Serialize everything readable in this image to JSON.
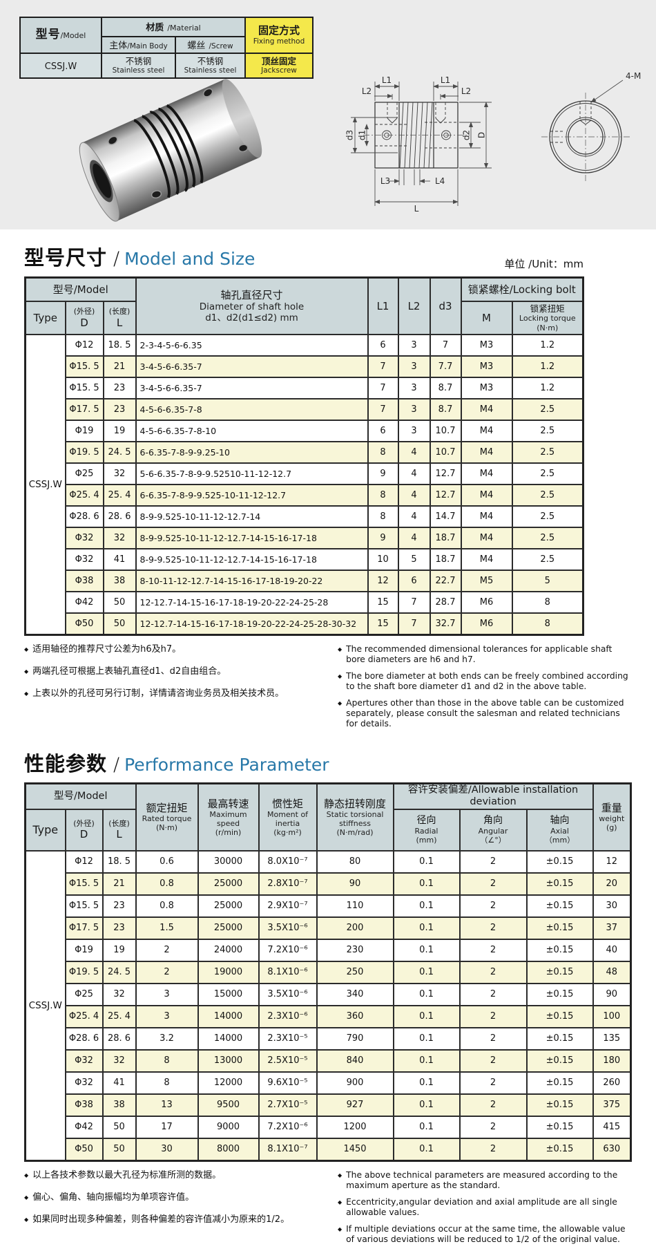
{
  "bullet": "◆",
  "spec_table": {
    "model_zh": "型号",
    "model_en": "/Model",
    "material_zh": "材质",
    "material_en": "/Material",
    "main_body_zh": "主体",
    "main_body_en": "/Main Body",
    "screw_zh": "螺丝",
    "screw_en": "/Screw",
    "fixing_zh": "固定方式",
    "fixing_en": "Fixing method",
    "model_value": "CSSJ.W",
    "main_body_value_zh": "不锈钢",
    "main_body_value_en": "Stainless steel",
    "screw_value_zh": "不锈钢",
    "screw_value_en": "Stainless steel",
    "fixing_value_zh": "顶丝固定",
    "fixing_value_en": "Jackscrew"
  },
  "drawing": {
    "l1": "L1",
    "l2": "L2",
    "l3": "L3",
    "l4": "L4",
    "l": "L",
    "d1": "d1",
    "d2": "d2",
    "d3": "d3",
    "d_outer": "D",
    "four_m": "4-M"
  },
  "size_section": {
    "title_zh": "型号尺寸",
    "title_sep": "/",
    "title_en": "Model and Size",
    "unit": "单位 /Unit：mm",
    "header": {
      "model_group": "型号/Model",
      "bore_zh": "轴孔直径尺寸",
      "bore_en": "Diameter of shaft hole",
      "bore_range": "d1、d2(d1≤d2) mm",
      "l1": "L1",
      "l2": "L2",
      "d3": "d3",
      "lock_group": "锁紧螺栓/Locking bolt",
      "type": "Type",
      "d_zh": "(外径)",
      "d": "D",
      "l_zh": "(长度)",
      "l": "L",
      "m": "M",
      "torque_zh": "锁紧扭矩",
      "torque_en": "Locking torque",
      "torque_unit": "(N·m)"
    },
    "type_value": "CSSJ.W",
    "rows": [
      {
        "d": "Φ12",
        "l": "18. 5",
        "bore": "2-3-4-5-6-6.35",
        "l1": "6",
        "l2": "3",
        "d3": "7",
        "m": "M3",
        "torque": "1.2"
      },
      {
        "d": "Φ15. 5",
        "l": "21",
        "bore": "3-4-5-6-6.35-7",
        "l1": "7",
        "l2": "3",
        "d3": "7.7",
        "m": "M3",
        "torque": "1.2"
      },
      {
        "d": "Φ15. 5",
        "l": "23",
        "bore": "3-4-5-6-6.35-7",
        "l1": "7",
        "l2": "3",
        "d3": "8.7",
        "m": "M3",
        "torque": "1.2"
      },
      {
        "d": "Φ17. 5",
        "l": "23",
        "bore": "4-5-6-6.35-7-8",
        "l1": "7",
        "l2": "3",
        "d3": "8.7",
        "m": "M4",
        "torque": "2.5"
      },
      {
        "d": "Φ19",
        "l": "19",
        "bore": "4-5-6-6.35-7-8-10",
        "l1": "6",
        "l2": "3",
        "d3": "10.7",
        "m": "M4",
        "torque": "2.5"
      },
      {
        "d": "Φ19. 5",
        "l": "24. 5",
        "bore": "6-6.35-7-8-9-9.25-10",
        "l1": "8",
        "l2": "4",
        "d3": "10.7",
        "m": "M4",
        "torque": "2.5"
      },
      {
        "d": "Φ25",
        "l": "32",
        "bore": "5-6-6.35-7-8-9-9.52510-11-12-12.7",
        "l1": "9",
        "l2": "4",
        "d3": "12.7",
        "m": "M4",
        "torque": "2.5"
      },
      {
        "d": "Φ25. 4",
        "l": "25. 4",
        "bore": "6-6.35-7-8-9-9.525-10-11-12-12.7",
        "l1": "8",
        "l2": "4",
        "d3": "12.7",
        "m": "M4",
        "torque": "2.5"
      },
      {
        "d": "Φ28. 6",
        "l": "28. 6",
        "bore": "8-9-9.525-10-11-12-12.7-14",
        "l1": "8",
        "l2": "4",
        "d3": "14.7",
        "m": "M4",
        "torque": "2.5"
      },
      {
        "d": "Φ32",
        "l": "32",
        "bore": "8-9-9.525-10-11-12-12.7-14-15-16-17-18",
        "l1": "9",
        "l2": "4",
        "d3": "18.7",
        "m": "M4",
        "torque": "2.5"
      },
      {
        "d": "Φ32",
        "l": "41",
        "bore": "8-9-9.525-10-11-12-12.7-14-15-16-17-18",
        "l1": "10",
        "l2": "5",
        "d3": "18.7",
        "m": "M4",
        "torque": "2.5"
      },
      {
        "d": "Φ38",
        "l": "38",
        "bore": "8-10-11-12-12.7-14-15-16-17-18-19-20-22",
        "l1": "12",
        "l2": "6",
        "d3": "22.7",
        "m": "M5",
        "torque": "5"
      },
      {
        "d": "Φ42",
        "l": "50",
        "bore": "12-12.7-14-15-16-17-18-19-20-22-24-25-28",
        "l1": "15",
        "l2": "7",
        "d3": "28.7",
        "m": "M6",
        "torque": "8"
      },
      {
        "d": "Φ50",
        "l": "50",
        "bore": "12-12.7-14-15-16-17-18-19-20-22-24-25-28-30-32",
        "l1": "15",
        "l2": "7",
        "d3": "32.7",
        "m": "M6",
        "torque": "8"
      }
    ],
    "notes_zh": [
      "适用轴径的推荐尺寸公差为h6及h7。",
      "两端孔径可根据上表轴孔直径d1、d2自由组合。",
      "上表以外的孔径可另行订制，详情请咨询业务员及相关技术员。"
    ],
    "notes_en": [
      "The recommended dimensional tolerances for applicable shaft bore diameters are h6 and h7.",
      "The bore diameter at both ends can be freely combined according to the shaft bore diameter d1 and d2 in the above table.",
      "Apertures other than those in the above table can be customized separately, please consult the salesman and related technicians for details."
    ]
  },
  "perf_section": {
    "title_zh": "性能参数",
    "title_sep": "/",
    "title_en": "Performance Parameter",
    "header": {
      "model_group": "型号/Model",
      "type": "Type",
      "d_zh": "(外径)",
      "d": "D",
      "l_zh": "(长度)",
      "l": "L",
      "torque_zh": "额定扭矩",
      "torque_en": "Rated torque",
      "torque_unit": "(N·m)",
      "speed_zh": "最高转速",
      "speed_en": "Maximum speed",
      "speed_unit": "(r/min)",
      "inertia_zh": "惯性矩",
      "inertia_en": "Moment of inertia",
      "inertia_unit": "(kg·m²)",
      "stiffness_zh": "静态扭转刚度",
      "stiffness_en": "Static torsional stiffness",
      "stiffness_unit": "(N·m/rad)",
      "deviation_group": "容许安装偏差/Allowable installation deviation",
      "radial_zh": "径向",
      "radial_en": "Radial",
      "radial_unit": "(mm)",
      "angular_zh": "角向",
      "angular_en": "Angular",
      "angular_unit": "（∠°）",
      "axial_zh": "轴向",
      "axial_en": "Axial",
      "axial_unit": "（mm）",
      "weight_zh": "重量",
      "weight_en": "weight",
      "weight_unit": "(g)"
    },
    "type_value": "CSSJ.W",
    "rows": [
      {
        "d": "Φ12",
        "l": "18. 5",
        "torque": "0.6",
        "speed": "30000",
        "inertia": "8.0X10⁻⁷",
        "stiffness": "80",
        "radial": "0.1",
        "angular": "2",
        "axial": "±0.15",
        "weight": "12"
      },
      {
        "d": "Φ15. 5",
        "l": "21",
        "torque": "0.8",
        "speed": "25000",
        "inertia": "2.8X10⁻⁷",
        "stiffness": "90",
        "radial": "0.1",
        "angular": "2",
        "axial": "±0.15",
        "weight": "20"
      },
      {
        "d": "Φ15. 5",
        "l": "23",
        "torque": "0.8",
        "speed": "25000",
        "inertia": "2.9X10⁻⁷",
        "stiffness": "110",
        "radial": "0.1",
        "angular": "2",
        "axial": "±0.15",
        "weight": "30"
      },
      {
        "d": "Φ17. 5",
        "l": "23",
        "torque": "1.5",
        "speed": "25000",
        "inertia": "3.5X10⁻⁶",
        "stiffness": "200",
        "radial": "0.1",
        "angular": "2",
        "axial": "±0.15",
        "weight": "37"
      },
      {
        "d": "Φ19",
        "l": "19",
        "torque": "2",
        "speed": "24000",
        "inertia": "7.2X10⁻⁶",
        "stiffness": "230",
        "radial": "0.1",
        "angular": "2",
        "axial": "±0.15",
        "weight": "40"
      },
      {
        "d": "Φ19. 5",
        "l": "24. 5",
        "torque": "2",
        "speed": "19000",
        "inertia": "8.1X10⁻⁶",
        "stiffness": "250",
        "radial": "0.1",
        "angular": "2",
        "axial": "±0.15",
        "weight": "48"
      },
      {
        "d": "Φ25",
        "l": "32",
        "torque": "3",
        "speed": "15000",
        "inertia": "3.5X10⁻⁶",
        "stiffness": "340",
        "radial": "0.1",
        "angular": "2",
        "axial": "±0.15",
        "weight": "90"
      },
      {
        "d": "Φ25. 4",
        "l": "25. 4",
        "torque": "3",
        "speed": "14000",
        "inertia": "2.3X10⁻⁶",
        "stiffness": "360",
        "radial": "0.1",
        "angular": "2",
        "axial": "±0.15",
        "weight": "100"
      },
      {
        "d": "Φ28. 6",
        "l": "28. 6",
        "torque": "3.2",
        "speed": "14000",
        "inertia": "2.3X10⁻⁵",
        "stiffness": "790",
        "radial": "0.1",
        "angular": "2",
        "axial": "±0.15",
        "weight": "135"
      },
      {
        "d": "Φ32",
        "l": "32",
        "torque": "8",
        "speed": "13000",
        "inertia": "2.5X10⁻⁵",
        "stiffness": "840",
        "radial": "0.1",
        "angular": "2",
        "axial": "±0.15",
        "weight": "180"
      },
      {
        "d": "Φ32",
        "l": "41",
        "torque": "8",
        "speed": "12000",
        "inertia": "9.6X10⁻⁵",
        "stiffness": "900",
        "radial": "0.1",
        "angular": "2",
        "axial": "±0.15",
        "weight": "260"
      },
      {
        "d": "Φ38",
        "l": "38",
        "torque": "13",
        "speed": "9500",
        "inertia": "2.7X10⁻⁵",
        "stiffness": "927",
        "radial": "0.1",
        "angular": "2",
        "axial": "±0.15",
        "weight": "375"
      },
      {
        "d": "Φ42",
        "l": "50",
        "torque": "17",
        "speed": "9000",
        "inertia": "7.2X10⁻⁶",
        "stiffness": "1200",
        "radial": "0.1",
        "angular": "2",
        "axial": "±0.15",
        "weight": "415"
      },
      {
        "d": "Φ50",
        "l": "50",
        "torque": "30",
        "speed": "8000",
        "inertia": "8.1X10⁻⁷",
        "stiffness": "1450",
        "radial": "0.1",
        "angular": "2",
        "axial": "±0.15",
        "weight": "630"
      }
    ],
    "notes_zh": [
      "以上各技术参数以最大孔径为标准所测的数据。",
      "偏心、偏角、轴向振幅均为单项容许值。",
      "如果同时出现多种偏差，则各种偏差的容许值减小为原来的1/2。"
    ],
    "notes_en": [
      "The above technical parameters are measured according to the maximum aperture as the standard.",
      "Eccentricity,angular deviation and axial amplitude are all single allowable values.",
      "If multiple deviations occur at the same time, the allowable value of various deviations will be reduced to 1/2 of the original value."
    ]
  }
}
